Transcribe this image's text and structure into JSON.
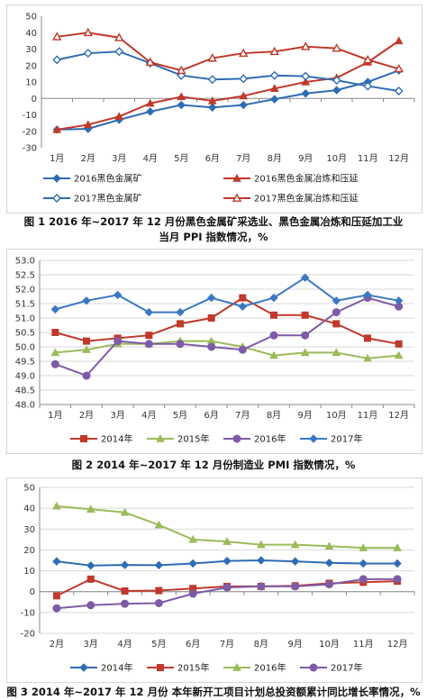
{
  "chart_data": [
    {
      "type": "line",
      "caption": "图 1  2016 年~2017 年 12 月份黑色金属矿采选业、黑色金属冶炼和压延加工业当月 PPI 指数情况，%",
      "caption_line1": "图 1  2016 年~2017 年 12 月份黑色金属矿采选业、黑色金属冶炼和压延加工业",
      "caption_line2": "当月 PPI  指数情况，%",
      "categories": [
        "1月",
        "2月",
        "3月",
        "4月",
        "5月",
        "6月",
        "7月",
        "8月",
        "9月",
        "10月",
        "11月",
        "12月"
      ],
      "ylim": [
        -30,
        50
      ],
      "yticks": [
        -30,
        -20,
        -10,
        0,
        10,
        20,
        30,
        40,
        50
      ],
      "grid": false,
      "legend_position": "bottom",
      "series": [
        {
          "name": "2016黑色金属矿",
          "color": "#2e6db4",
          "marker": "diamond-filled",
          "values": [
            -19,
            -18.5,
            -13,
            -8,
            -4,
            -5.5,
            -4,
            -0.5,
            3,
            5,
            10,
            17
          ]
        },
        {
          "name": "2016黑色金属冶炼和压延",
          "color": "#c0392b",
          "marker": "triangle-filled",
          "values": [
            -19,
            -16,
            -11,
            -3,
            1,
            -1.5,
            1.5,
            6,
            10,
            12.5,
            22,
            35
          ]
        },
        {
          "name": "2017黑色金属矿",
          "color": "#2e6db4",
          "marker": "diamond-open",
          "values": [
            23.5,
            27.5,
            28.5,
            21.5,
            14,
            11.5,
            12,
            14,
            13.5,
            11,
            7.5,
            4.5
          ]
        },
        {
          "name": "2017黑色金属冶炼和压延",
          "color": "#c0392b",
          "marker": "triangle-open",
          "values": [
            37.5,
            40,
            37,
            22,
            17,
            24.5,
            27.5,
            28.5,
            31.5,
            30.5,
            23.5,
            18
          ]
        }
      ]
    },
    {
      "type": "line",
      "caption": "图 2  2014 年~2017 年 12 月份制造业 PMI 指数情况，%",
      "categories": [
        "1月",
        "2月",
        "3月",
        "4月",
        "5月",
        "6月",
        "7月",
        "8月",
        "9月",
        "10月",
        "11月",
        "12月"
      ],
      "ylim": [
        48.0,
        53.0
      ],
      "yticks": [
        "48.0",
        "48.5",
        "49.0",
        "49.5",
        "50.0",
        "50.5",
        "51.0",
        "51.5",
        "52.0",
        "52.5",
        "53.0"
      ],
      "grid": true,
      "legend_position": "bottom",
      "series": [
        {
          "name": "2014年",
          "color": "#c0392b",
          "marker": "square",
          "values": [
            50.5,
            50.2,
            50.3,
            50.4,
            50.8,
            51.0,
            51.7,
            51.1,
            51.1,
            50.8,
            50.3,
            50.1
          ]
        },
        {
          "name": "2015年",
          "color": "#9bbb59",
          "marker": "triangle",
          "values": [
            49.8,
            49.9,
            50.1,
            50.1,
            50.2,
            50.2,
            50.0,
            49.7,
            49.8,
            49.8,
            49.6,
            49.7
          ]
        },
        {
          "name": "2016年",
          "color": "#7e5ba6",
          "marker": "circle",
          "values": [
            49.4,
            49.0,
            50.2,
            50.1,
            50.1,
            50.0,
            49.9,
            50.4,
            50.4,
            51.2,
            51.7,
            51.4
          ]
        },
        {
          "name": "2017年",
          "color": "#3b78c2",
          "marker": "diamond",
          "values": [
            51.3,
            51.6,
            51.8,
            51.2,
            51.2,
            51.7,
            51.4,
            51.7,
            52.4,
            51.6,
            51.8,
            51.6
          ]
        }
      ]
    },
    {
      "type": "line",
      "caption": "图 3  2014 年~2017 年 12 月份  本年新开工项目计划总投资额累计同比增长率情况，%",
      "categories": [
        "2月",
        "3月",
        "4月",
        "5月",
        "6月",
        "7月",
        "8月",
        "9月",
        "10月",
        "11月",
        "12月"
      ],
      "ylim": [
        -20,
        50
      ],
      "yticks": [
        -20,
        -10,
        0,
        10,
        20,
        30,
        40,
        50
      ],
      "grid": true,
      "legend_position": "bottom",
      "series": [
        {
          "name": "2014年",
          "color": "#2e6db4",
          "marker": "diamond",
          "values": [
            14.5,
            12.5,
            12.8,
            12.7,
            13.5,
            14.7,
            15.0,
            14.5,
            13.8,
            13.5,
            13.5
          ]
        },
        {
          "name": "2015年",
          "color": "#c0392b",
          "marker": "square",
          "values": [
            -2,
            6,
            0.3,
            0.5,
            1.5,
            2.5,
            2.5,
            2.8,
            4,
            4.5,
            5
          ]
        },
        {
          "name": "2016年",
          "color": "#9bbb59",
          "marker": "triangle",
          "values": [
            41,
            39.5,
            38,
            32,
            25,
            24,
            22.5,
            22.5,
            21.8,
            21,
            21
          ]
        },
        {
          "name": "2017年",
          "color": "#7e5ba6",
          "marker": "circle",
          "values": [
            -8,
            -6.5,
            -5.8,
            -5.5,
            -1,
            2,
            2.5,
            2.5,
            3.5,
            6,
            6
          ]
        }
      ]
    }
  ]
}
